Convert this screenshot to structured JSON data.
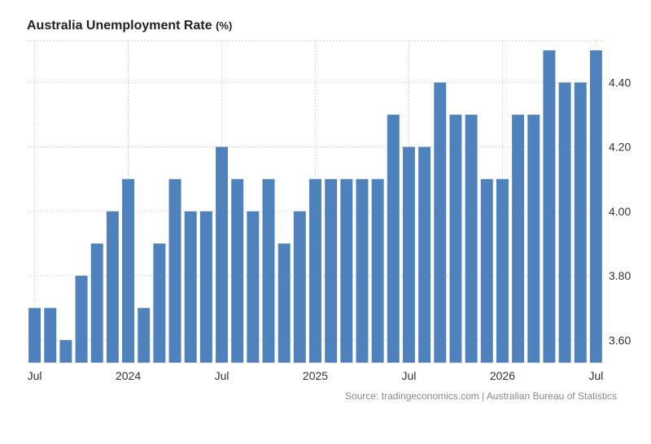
{
  "header": {
    "title": "Australia Unemployment Rate",
    "unit": "(%)"
  },
  "footer": {
    "source": "Source: tradingeconomics.com | Australian Bureau of Statistics"
  },
  "colors": {
    "bar": "#4f81bd",
    "grid": "#d9d9d9",
    "tick_text": "#333333"
  },
  "chart_data": {
    "type": "bar",
    "title": "Australia Unemployment Rate (%)",
    "xlabel": "",
    "ylabel": "",
    "ylim": [
      3.53,
      4.53
    ],
    "yticks": [
      3.6,
      3.8,
      4.0,
      4.2,
      4.4
    ],
    "ytick_labels": [
      "3.60",
      "3.80",
      "4.00",
      "4.20",
      "4.40"
    ],
    "y_axis_side": "right",
    "grid": true,
    "categories": [
      "2023-07",
      "2023-08",
      "2023-09",
      "2023-10",
      "2023-11",
      "2023-12",
      "2024-01",
      "2024-02",
      "2024-03",
      "2024-04",
      "2024-05",
      "2024-06",
      "2024-07",
      "2024-08",
      "2024-09",
      "2024-10",
      "2024-11",
      "2024-12",
      "2025-01",
      "2025-02",
      "2025-03",
      "2025-04",
      "2025-05",
      "2025-06",
      "2025-07",
      "2025-08",
      "2025-09",
      "2025-10",
      "2025-11",
      "2025-12",
      "2026-01",
      "2026-02",
      "2026-03",
      "2026-04",
      "2026-05",
      "2026-06",
      "2026-07"
    ],
    "values": [
      3.7,
      3.7,
      3.6,
      3.8,
      3.9,
      4.0,
      4.1,
      3.7,
      3.9,
      4.1,
      4.0,
      4.0,
      4.2,
      4.1,
      4.0,
      4.1,
      3.9,
      4.0,
      4.1,
      4.1,
      4.1,
      4.1,
      4.1,
      4.3,
      4.2,
      4.2,
      4.4,
      4.3,
      4.3,
      4.1,
      4.1,
      4.3,
      4.3,
      4.5,
      4.4,
      4.4,
      4.5
    ],
    "xtick_labels": [
      {
        "index": 0,
        "label": "Jul"
      },
      {
        "index": 6,
        "label": "2024"
      },
      {
        "index": 12,
        "label": "Jul"
      },
      {
        "index": 18,
        "label": "2025"
      },
      {
        "index": 24,
        "label": "Jul"
      },
      {
        "index": 30,
        "label": "2026"
      },
      {
        "index": 36,
        "label": "Jul"
      }
    ]
  }
}
